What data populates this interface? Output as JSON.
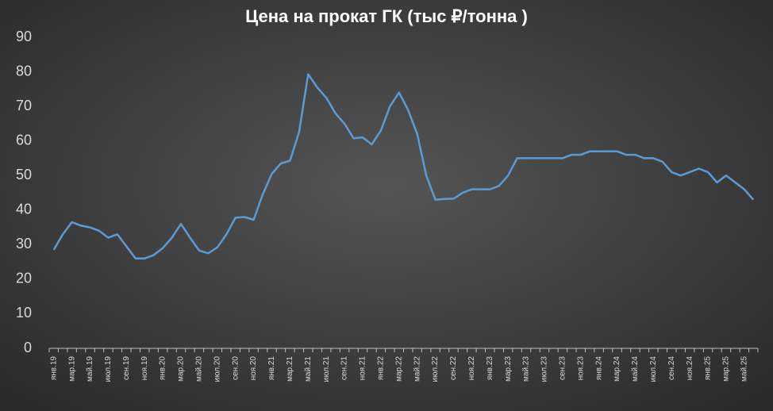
{
  "chart_data": {
    "type": "line",
    "title": "Цена на прокат ГК (тыс ₽/тонна )",
    "categories": [
      "янв.19",
      null,
      "мар.19",
      null,
      "май.19",
      null,
      "июл.19",
      null,
      "сен.19",
      null,
      "ноя.19",
      null,
      "янв.20",
      null,
      "мар.20",
      null,
      "май.20",
      null,
      "июл.20",
      null,
      "сен.20",
      null,
      "ноя.20",
      null,
      "янв.21",
      null,
      "мар.21",
      null,
      "май.21",
      null,
      "июл.21",
      null,
      "сен.21",
      null,
      "ноя.21",
      null,
      "янв.22",
      null,
      "мар.22",
      null,
      "май.22",
      null,
      "июл.22",
      null,
      "сен.22",
      null,
      "ноя.22",
      null,
      "янв.23",
      null,
      "мар.23",
      null,
      "май.23",
      null,
      "июл.23",
      null,
      "сен.23",
      null,
      "ноя.23",
      null,
      "янв.24",
      null,
      "мар.24",
      null,
      "май.24",
      null,
      "июл.24",
      null,
      "сен.24",
      null,
      "ноя.24",
      null,
      "янв.25",
      null,
      "мар.25",
      null,
      "май.25",
      null
    ],
    "values": [
      28.5,
      33,
      36.5,
      35.5,
      35,
      34,
      32,
      33,
      29.5,
      26,
      26,
      27,
      29,
      32,
      36,
      32,
      28.3,
      27.5,
      29.2,
      33,
      37.8,
      38,
      37.2,
      44.5,
      50.5,
      53.5,
      54.3,
      62.5,
      79.3,
      75.5,
      72.5,
      68,
      65,
      60.8,
      61,
      59,
      63,
      70,
      74,
      69,
      62,
      50,
      43,
      43.2,
      43.3,
      45,
      46,
      46,
      46,
      47,
      50,
      55,
      55,
      55,
      55,
      55,
      55,
      56,
      56,
      57,
      57,
      57,
      57,
      56,
      56,
      55,
      55,
      54,
      51,
      50,
      51,
      52,
      51,
      48,
      50,
      48,
      46,
      43
    ],
    "color": "#5b9bd5",
    "ylim": [
      0,
      90
    ],
    "yticks": [
      0,
      10,
      20,
      30,
      40,
      50,
      60,
      70,
      80,
      90
    ],
    "grid": false
  }
}
